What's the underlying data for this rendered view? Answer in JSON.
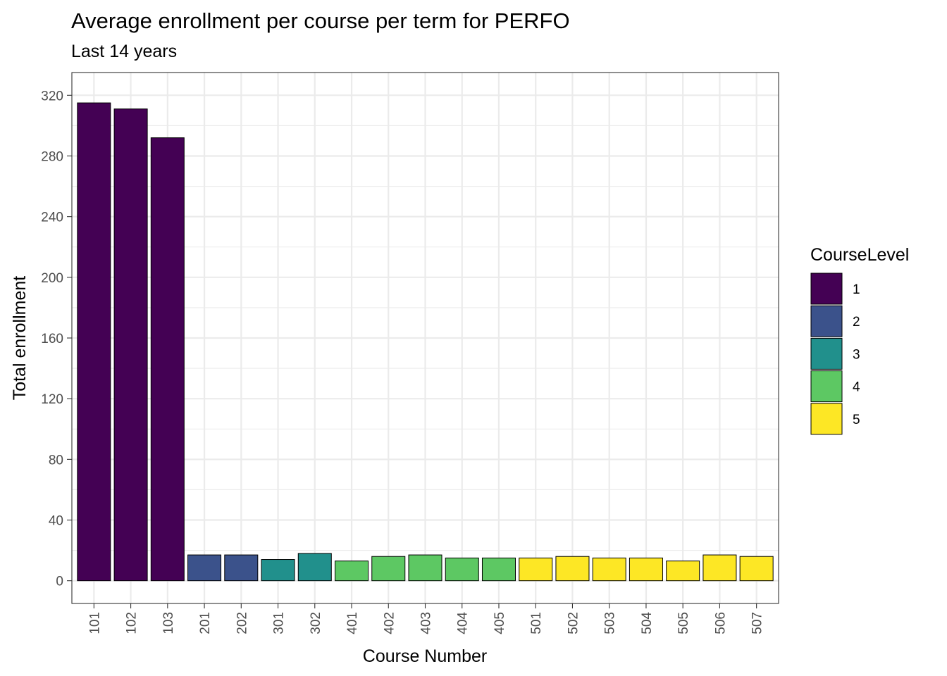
{
  "chart_data": {
    "type": "bar",
    "title": "Average enrollment per course per term for PERFO",
    "subtitle": "Last 14 years",
    "xlabel": "Course Number",
    "ylabel": "Total enrollment",
    "ylim": [
      -15,
      335
    ],
    "yticks": [
      0,
      40,
      80,
      120,
      160,
      200,
      240,
      280,
      320
    ],
    "yticks_minor": [
      20,
      60,
      100,
      140,
      180,
      220,
      260,
      300
    ],
    "grid": true,
    "categories": [
      "101",
      "102",
      "103",
      "201",
      "202",
      "301",
      "302",
      "401",
      "402",
      "403",
      "404",
      "405",
      "501",
      "502",
      "503",
      "504",
      "505",
      "506",
      "507"
    ],
    "values": [
      315,
      311,
      292,
      17,
      17,
      14,
      18,
      13,
      16,
      17,
      15,
      15,
      15,
      16,
      15,
      15,
      13,
      17,
      16
    ],
    "group": [
      1,
      1,
      1,
      2,
      2,
      3,
      3,
      4,
      4,
      4,
      4,
      4,
      5,
      5,
      5,
      5,
      5,
      5,
      5
    ],
    "legend": {
      "title": "CourseLevel",
      "position": "right",
      "entries": [
        {
          "label": "1",
          "color": "#440154"
        },
        {
          "label": "2",
          "color": "#3B528B"
        },
        {
          "label": "3",
          "color": "#21908C"
        },
        {
          "label": "4",
          "color": "#5DC863"
        },
        {
          "label": "5",
          "color": "#FDE725"
        }
      ]
    }
  }
}
